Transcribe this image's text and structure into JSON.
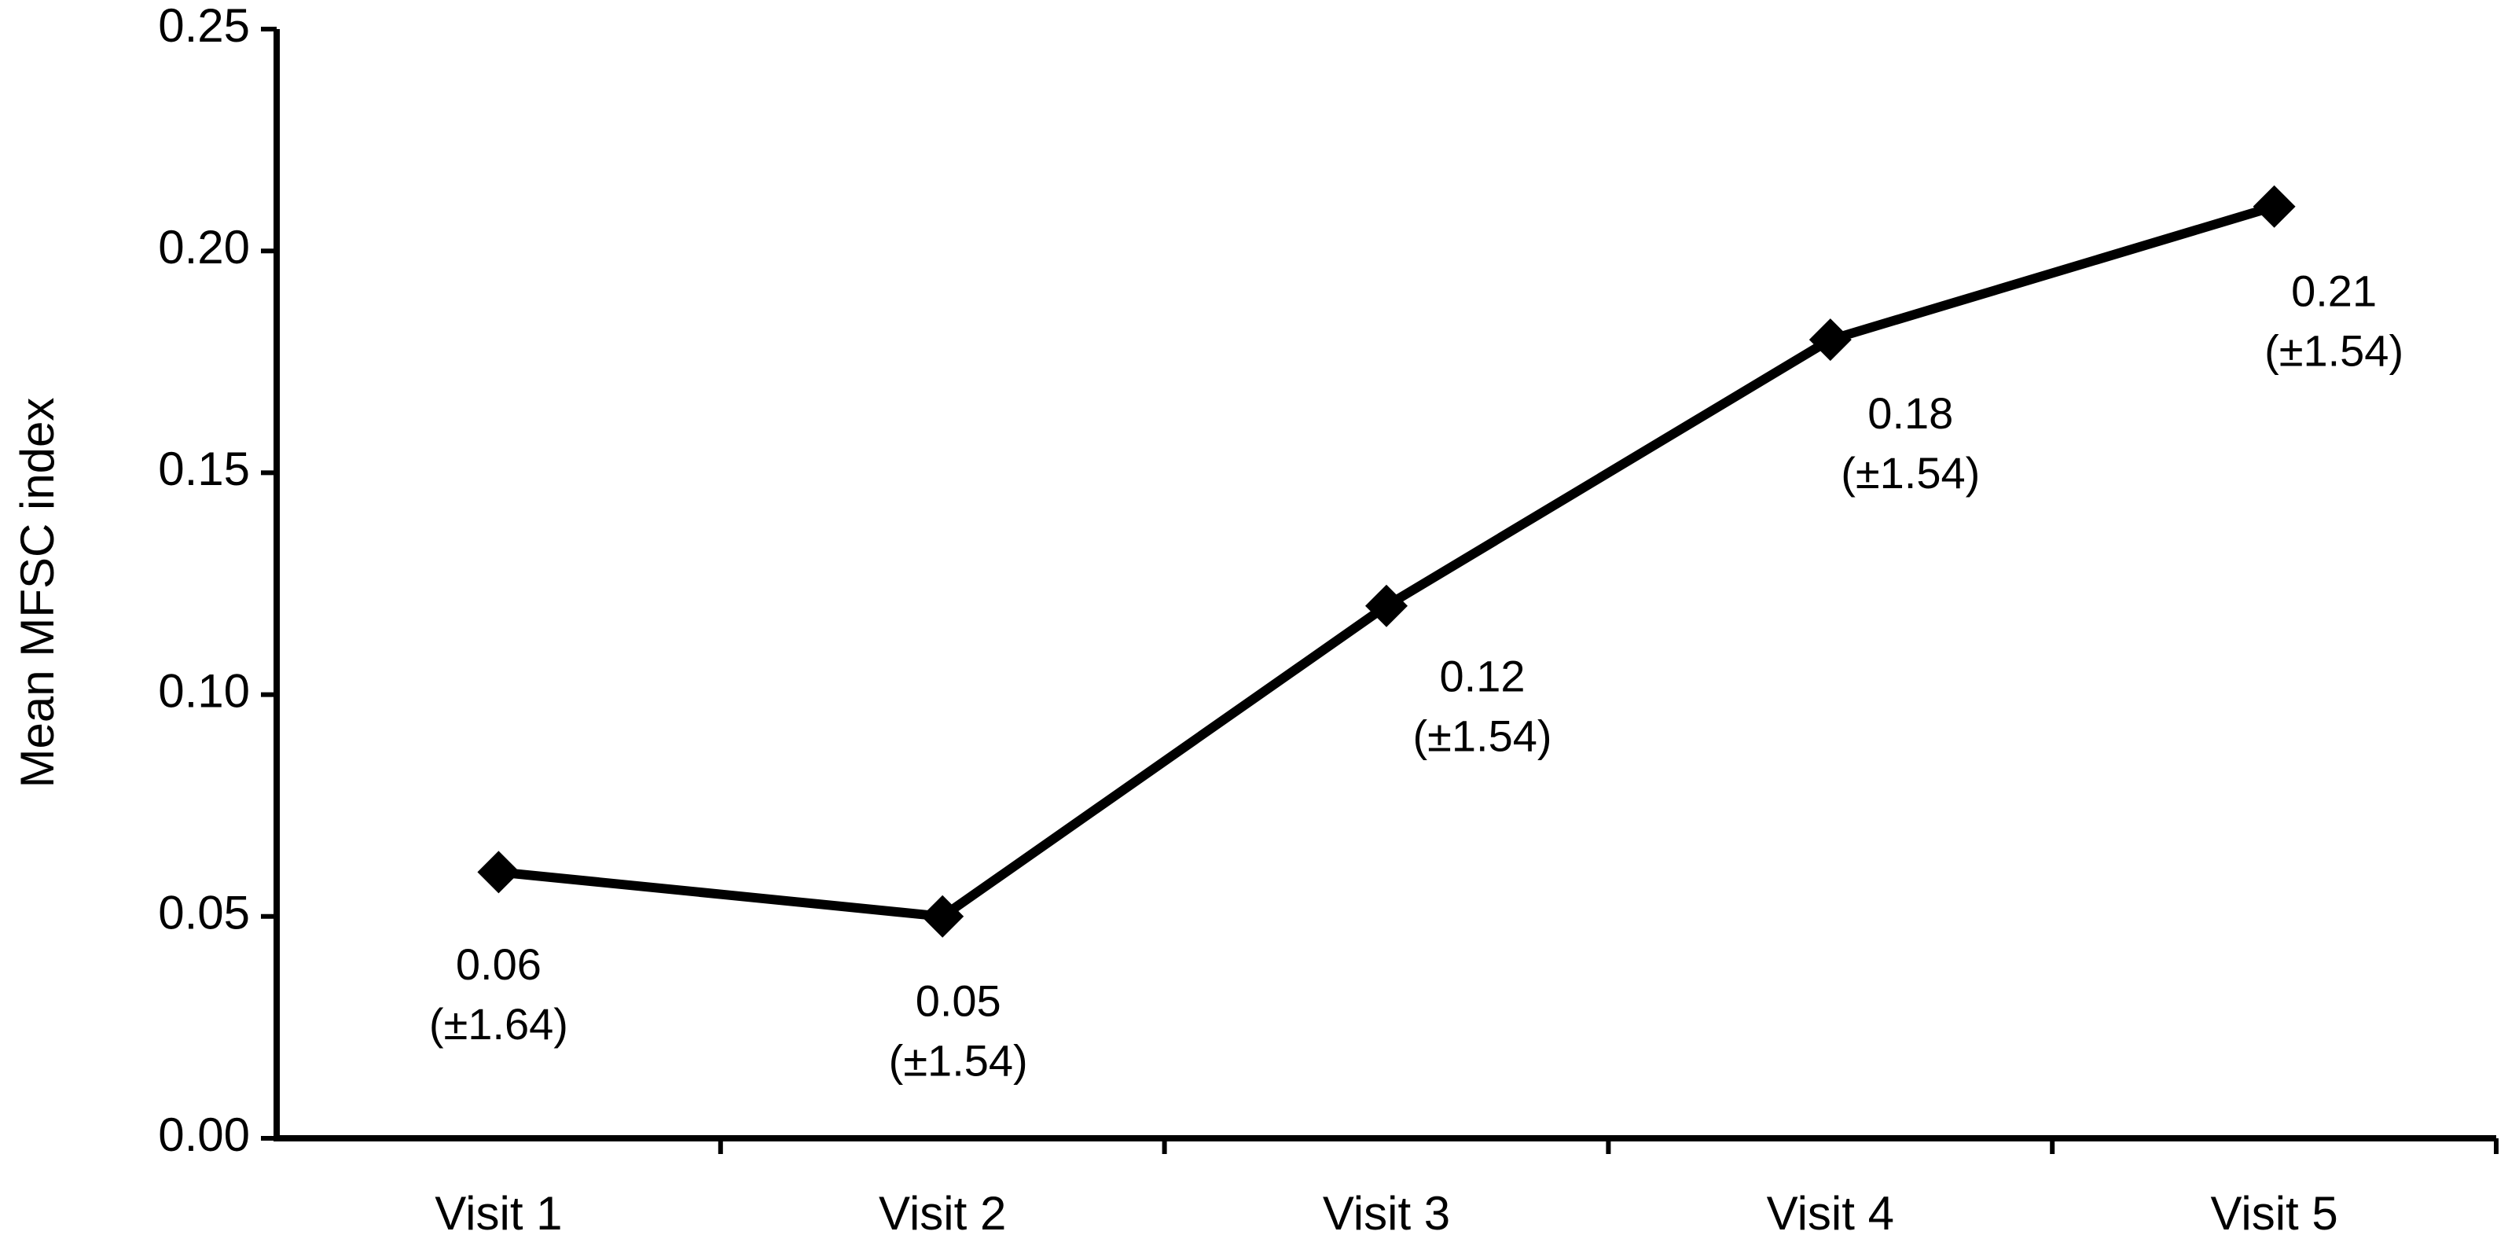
{
  "chart_data": {
    "type": "line",
    "y_label": "Mean MFSC index",
    "categories": [
      "Visit 1",
      "Visit 2",
      "Visit 3",
      "Visit 4",
      "Visit 5"
    ],
    "series": [
      {
        "color": "#000000",
        "values": [
          0.06,
          0.05,
          0.12,
          0.18,
          0.21
        ],
        "error_labels": [
          "(±1.64)",
          "(±1.54)",
          "(±1.54)",
          "(±1.54)",
          "(±1.54)"
        ]
      }
    ],
    "ylim": [
      0,
      0.25
    ],
    "yticks": [
      {
        "value": 0,
        "label": "0.00"
      },
      0.05,
      {
        "value": 0.1,
        "label": "0.10"
      },
      0.15,
      {
        "value": 0.2,
        "label": "0.20"
      },
      0.25
    ],
    "grid": false
  }
}
